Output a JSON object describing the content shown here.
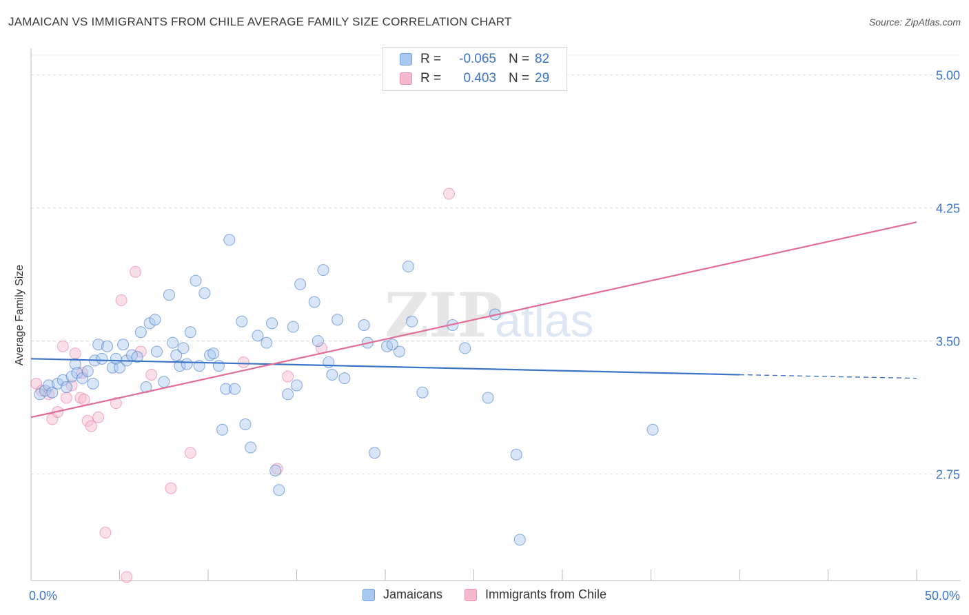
{
  "title": "JAMAICAN VS IMMIGRANTS FROM CHILE AVERAGE FAMILY SIZE CORRELATION CHART",
  "source": "Source: ZipAtlas.com",
  "watermark": {
    "zip": "ZIP",
    "atlas": "atlas"
  },
  "legend": {
    "rows": [
      {
        "r_label": "R =",
        "r_value": "-0.065",
        "n_label": "N =",
        "n_value": "82"
      },
      {
        "r_label": "R =",
        "r_value": "0.403",
        "n_label": "N =",
        "n_value": "29"
      }
    ]
  },
  "bottom_legend": {
    "jamaicans": "Jamaicans",
    "chile": "Immigrants from Chile"
  },
  "chart_data": {
    "type": "scatter",
    "xlabel": "",
    "ylabel": "Average Family Size",
    "xlim": [
      0,
      50
    ],
    "ylim": [
      2.15,
      5.15
    ],
    "x_tick_labels": [
      "0.0%",
      "50.0%"
    ],
    "y_ticks": [
      2.75,
      3.5,
      4.25,
      5.0
    ],
    "y_tick_labels": [
      "2.75",
      "3.50",
      "4.25",
      "5.00"
    ],
    "grid": true,
    "legend_position": "top-center",
    "colors": {
      "jamaicans": "#3b73c8",
      "chile": "#e06c97",
      "jamaicans_fill": "#a9c8f0",
      "chile_fill": "#f6b8cc",
      "tick_label": "#3b73c8"
    },
    "series": [
      {
        "name": "Jamaicans",
        "trend": {
          "x0": 0,
          "y0": 3.4,
          "x1": 40,
          "y1": 3.31,
          "dash_to_x": 50,
          "dash_to_y": 3.29
        },
        "points": [
          [
            0.5,
            3.2
          ],
          [
            0.8,
            3.22
          ],
          [
            1.0,
            3.25
          ],
          [
            1.2,
            3.21
          ],
          [
            1.5,
            3.26
          ],
          [
            1.8,
            3.28
          ],
          [
            2.0,
            3.24
          ],
          [
            2.3,
            3.3
          ],
          [
            2.5,
            3.37
          ],
          [
            2.6,
            3.32
          ],
          [
            2.9,
            3.29
          ],
          [
            3.2,
            3.33
          ],
          [
            3.5,
            3.26
          ],
          [
            3.6,
            3.39
          ],
          [
            3.8,
            3.48
          ],
          [
            4.0,
            3.4
          ],
          [
            4.3,
            3.47
          ],
          [
            4.6,
            3.35
          ],
          [
            4.8,
            3.4
          ],
          [
            5.0,
            3.35
          ],
          [
            5.2,
            3.48
          ],
          [
            5.4,
            3.39
          ],
          [
            5.7,
            3.42
          ],
          [
            6.0,
            3.41
          ],
          [
            6.2,
            3.55
          ],
          [
            6.5,
            3.24
          ],
          [
            6.7,
            3.6
          ],
          [
            7.0,
            3.62
          ],
          [
            7.1,
            3.44
          ],
          [
            7.5,
            3.27
          ],
          [
            7.8,
            3.76
          ],
          [
            8.0,
            3.49
          ],
          [
            8.2,
            3.42
          ],
          [
            8.4,
            3.36
          ],
          [
            8.6,
            3.46
          ],
          [
            8.8,
            3.37
          ],
          [
            9.0,
            3.55
          ],
          [
            9.3,
            3.84
          ],
          [
            9.5,
            3.36
          ],
          [
            9.8,
            3.77
          ],
          [
            10.1,
            3.42
          ],
          [
            10.3,
            3.43
          ],
          [
            10.6,
            3.36
          ],
          [
            10.8,
            3.0
          ],
          [
            11.0,
            3.23
          ],
          [
            11.2,
            4.07
          ],
          [
            11.5,
            3.23
          ],
          [
            11.9,
            3.61
          ],
          [
            12.1,
            3.03
          ],
          [
            12.4,
            2.9
          ],
          [
            12.8,
            3.53
          ],
          [
            13.3,
            3.49
          ],
          [
            13.6,
            3.6
          ],
          [
            13.8,
            2.77
          ],
          [
            14.0,
            2.66
          ],
          [
            14.5,
            3.2
          ],
          [
            14.8,
            3.58
          ],
          [
            15.0,
            3.25
          ],
          [
            15.2,
            3.82
          ],
          [
            16.0,
            3.72
          ],
          [
            16.5,
            3.9
          ],
          [
            16.8,
            3.38
          ],
          [
            17.0,
            3.31
          ],
          [
            17.3,
            3.62
          ],
          [
            17.7,
            3.29
          ],
          [
            18.8,
            3.59
          ],
          [
            19.0,
            3.49
          ],
          [
            19.4,
            2.87
          ],
          [
            20.1,
            3.47
          ],
          [
            20.8,
            3.44
          ],
          [
            21.3,
            3.92
          ],
          [
            21.5,
            3.61
          ],
          [
            22.1,
            3.21
          ],
          [
            23.8,
            3.59
          ],
          [
            24.5,
            3.46
          ],
          [
            25.8,
            3.18
          ],
          [
            26.2,
            3.65
          ],
          [
            27.4,
            2.86
          ],
          [
            27.6,
            2.38
          ],
          [
            35.1,
            3.0
          ],
          [
            16.2,
            3.5
          ],
          [
            20.4,
            3.48
          ]
        ]
      },
      {
        "name": "Immigrants from Chile",
        "trend": {
          "x0": 0,
          "y0": 3.07,
          "x1": 50,
          "y1": 4.17
        },
        "points": [
          [
            0.3,
            3.26
          ],
          [
            0.6,
            3.22
          ],
          [
            1.0,
            3.2
          ],
          [
            1.2,
            3.06
          ],
          [
            1.5,
            3.1
          ],
          [
            1.8,
            3.47
          ],
          [
            2.0,
            3.18
          ],
          [
            2.3,
            3.25
          ],
          [
            2.5,
            3.43
          ],
          [
            2.8,
            3.18
          ],
          [
            3.0,
            3.17
          ],
          [
            3.2,
            3.05
          ],
          [
            3.4,
            3.02
          ],
          [
            3.8,
            3.07
          ],
          [
            4.2,
            2.42
          ],
          [
            4.8,
            3.15
          ],
          [
            5.1,
            3.73
          ],
          [
            5.4,
            2.17
          ],
          [
            5.9,
            3.89
          ],
          [
            6.2,
            3.44
          ],
          [
            6.8,
            3.31
          ],
          [
            7.9,
            2.67
          ],
          [
            9.0,
            2.87
          ],
          [
            12.0,
            3.38
          ],
          [
            13.9,
            2.78
          ],
          [
            14.5,
            3.3
          ],
          [
            16.4,
            3.46
          ],
          [
            23.6,
            4.33
          ],
          [
            2.9,
            3.32
          ]
        ]
      }
    ]
  }
}
